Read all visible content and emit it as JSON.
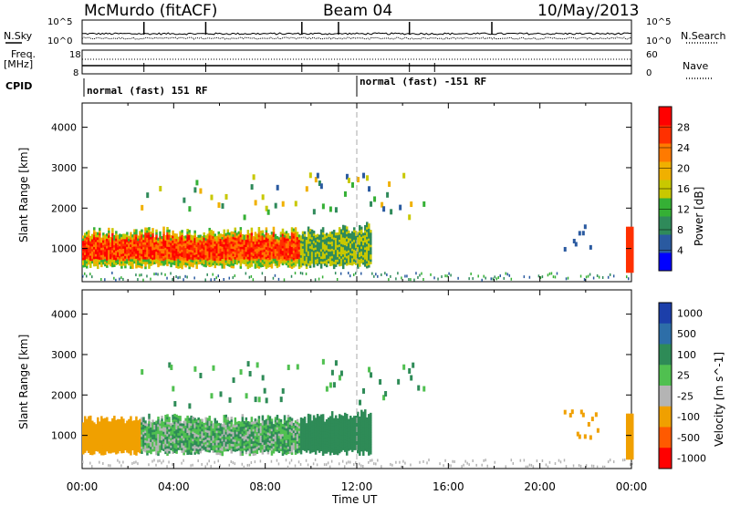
{
  "header": {
    "station": "McMurdo (fitACF)",
    "beam": "Beam 04",
    "date": "10/May/2013"
  },
  "noise_panel": {
    "left_label": "N.Sky",
    "right_label": "N.Search",
    "ticks_left": [
      "10^5",
      "10^0"
    ],
    "ticks_right": [
      "10^5",
      "10^0"
    ]
  },
  "freq_panel": {
    "left_label": "Freq.",
    "left_unit": "[MHz]",
    "right_label": "Nave",
    "ticks_left": [
      "18",
      "8"
    ],
    "ticks_right": [
      "60",
      "0"
    ]
  },
  "cpid": {
    "label": "CPID",
    "segments": [
      {
        "text": "normal (fast) 151 RF",
        "start_ut": "00:00"
      },
      {
        "text": "normal (fast) -151 RF",
        "start_ut": "12:00"
      }
    ]
  },
  "colors": {
    "power_scale": [
      "#0000ff",
      "#2a5aa0",
      "#2f8a5a",
      "#35b035",
      "#c8c800",
      "#f0b000",
      "#ff7a00",
      "#ff3000",
      "#ff0000"
    ],
    "velocity_scale": [
      "#ff0000",
      "#ff5a00",
      "#f0a000",
      "#b4b4b4",
      "#50c050",
      "#2e8b57",
      "#2d6ea8",
      "#1c3faa"
    ]
  },
  "chart_data": [
    {
      "type": "heatmap",
      "xlabel": "Time UT",
      "ylabel": "Slant Range [km]",
      "x_ticks": [
        "00:00",
        "04:00",
        "08:00",
        "12:00",
        "16:00",
        "20:00",
        "00:00"
      ],
      "y_ticks": [
        1000,
        2000,
        3000,
        4000
      ],
      "xlim_hours": [
        0,
        24
      ],
      "ylim_km": [
        180,
        4600
      ],
      "colorbar": {
        "label": "Power [dB]",
        "ticks": [
          "4",
          "8",
          "12",
          "16",
          "20",
          "24",
          "28"
        ]
      }
    },
    {
      "type": "heatmap",
      "xlabel": "Time UT",
      "ylabel": "Slant Range [km]",
      "x_ticks": [
        "00:00",
        "04:00",
        "08:00",
        "12:00",
        "16:00",
        "20:00",
        "00:00"
      ],
      "y_ticks": [
        1000,
        2000,
        3000,
        4000
      ],
      "xlim_hours": [
        0,
        24
      ],
      "ylim_km": [
        180,
        4600
      ],
      "colorbar": {
        "label": "Velocity [m s^-1]",
        "ticks": [
          "1000",
          "500",
          "100",
          "25",
          "-25",
          "-100",
          "-500",
          "-1000"
        ]
      }
    }
  ]
}
